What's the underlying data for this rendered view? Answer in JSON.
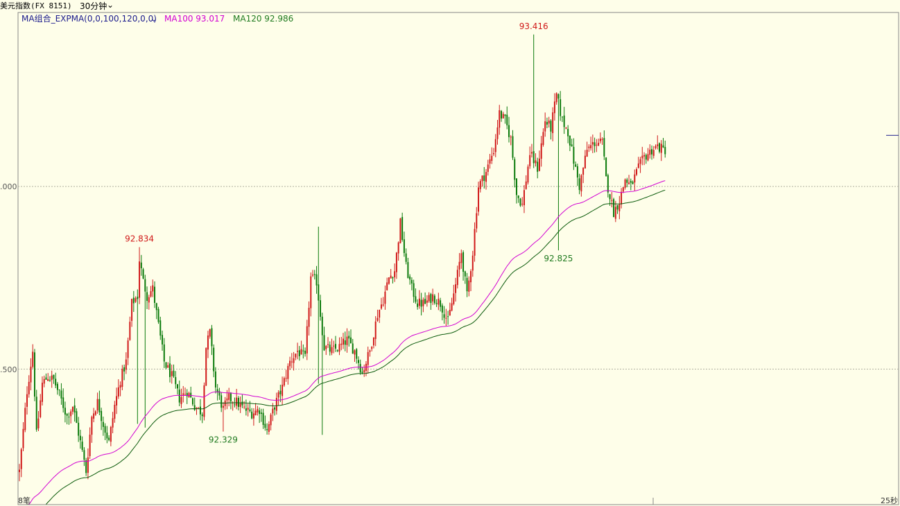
{
  "header": {
    "title": "美元指数(FX 8151)",
    "period": "30分钟",
    "period_chevron": "chevron-down-icon"
  },
  "indicators": {
    "group_label": "MA组合_EXPMA(0,0,100,120,0,0)",
    "group_chevron": "chevron-down-icon",
    "ma100_label": "MA100 93.017",
    "ma120_label": "MA120 92.986"
  },
  "colors": {
    "background": "#fefee9",
    "up": "#d01818",
    "down": "#0a7a0a",
    "ma100": "#d200d2",
    "ma120": "#0a5a0a",
    "grid": "#b0b0a0",
    "label_high": "#d01818",
    "label_low": "#1f7a1f"
  },
  "bottom": {
    "left_label": "8笔",
    "right_label": "25秒"
  },
  "chart_data": {
    "type": "candlestick",
    "y_ticks": [
      ".500",
      ".000"
    ],
    "ylim": [
      92.2,
      93.45
    ],
    "annotations": [
      {
        "label": "92.834",
        "kind": "high",
        "index": 63
      },
      {
        "label": "92.329",
        "kind": "low",
        "index": 107
      },
      {
        "label": "93.416",
        "kind": "high",
        "index": 270
      },
      {
        "label": "92.825",
        "kind": "low",
        "index": 283
      }
    ],
    "ma100_last": 93.017,
    "ma120_last": 92.986,
    "last_price_marker": 93.14
  }
}
